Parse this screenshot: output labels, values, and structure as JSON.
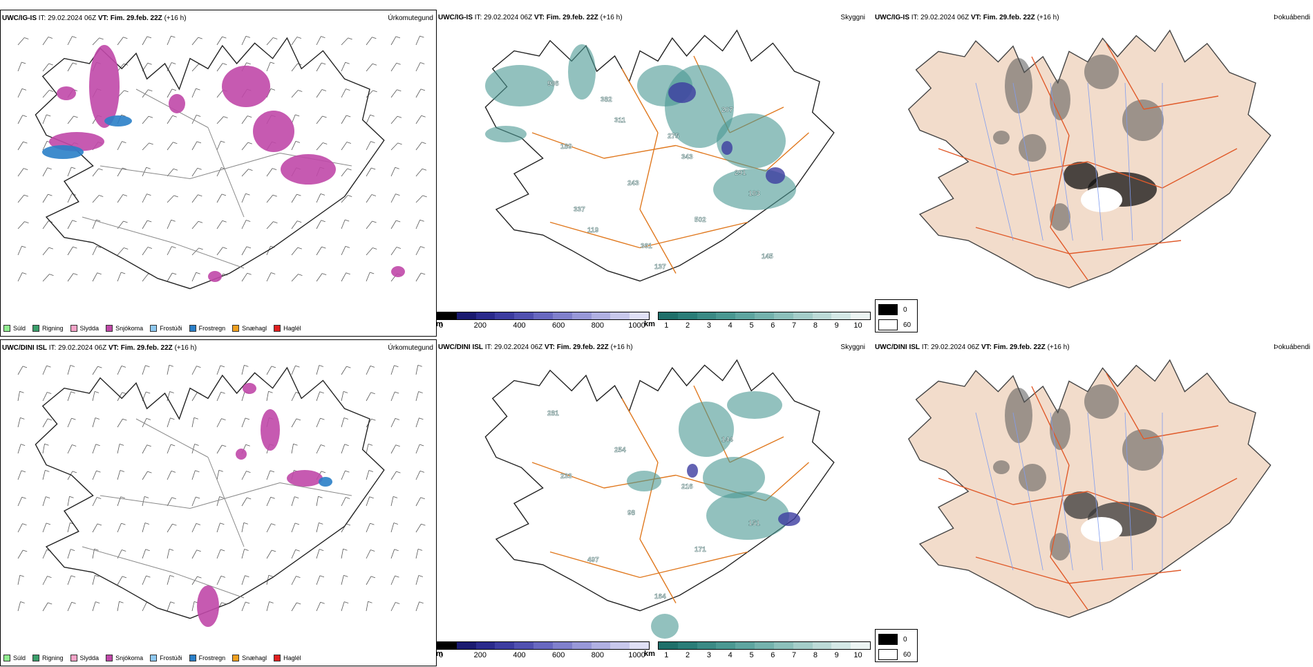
{
  "rows": [
    {
      "model": "UWC/IG-IS",
      "run_label": "IT:",
      "run": "29.02.2024 06Z",
      "valid_label": "VT:",
      "valid": "Fim. 29.feb. 22Z",
      "lead": "(+16 h)"
    },
    {
      "model": "UWC/DINI ISL",
      "run_label": "IT:",
      "run": "29.02.2024 06Z",
      "valid_label": "VT:",
      "valid": "Fim. 29.feb. 22Z",
      "lead": "(+16 h)"
    }
  ],
  "panels": {
    "precip_type": "Úrkomutegund",
    "clouds": "Skyggni",
    "fog": "Þokuábendi"
  },
  "precip_legend": [
    {
      "label": "Súld",
      "color": "#90ee90"
    },
    {
      "label": "Rigning",
      "color": "#3a9e6a"
    },
    {
      "label": "Slydda",
      "color": "#f5a3c7"
    },
    {
      "label": "Snjókoma",
      "color": "#c048a8"
    },
    {
      "label": "Frostúði",
      "color": "#8ec8f0"
    },
    {
      "label": "Frostregn",
      "color": "#2a7fc8"
    },
    {
      "label": "Snæhagl",
      "color": "#f0a020"
    },
    {
      "label": "Haglél",
      "color": "#e02020"
    }
  ],
  "cbar_m": {
    "unit": "m",
    "ticks": [
      "0",
      "200",
      "400",
      "600",
      "800",
      "1000"
    ],
    "colors": [
      "#000000",
      "#1a1a70",
      "#2a2a8c",
      "#3c3ca0",
      "#5050b0",
      "#6868c0",
      "#8080cc",
      "#9898d8",
      "#b0b0e2",
      "#c8c8ec",
      "#e0e0f5"
    ]
  },
  "cbar_km": {
    "unit": "km",
    "ticks": [
      "1",
      "2",
      "3",
      "4",
      "5",
      "6",
      "7",
      "8",
      "9",
      "10"
    ],
    "colors": [
      "#1f6f6a",
      "#2a7d78",
      "#3a8a85",
      "#4a9892",
      "#5ea5a0",
      "#74b2ad",
      "#8cc0bb",
      "#a4cdc9",
      "#bcdad7",
      "#d4e8e6",
      "#ecf4f3"
    ]
  },
  "fog_key": [
    {
      "value": "0",
      "color": "#000000"
    },
    {
      "value": "60",
      "color": "#ffffff"
    }
  ],
  "ceiling_labels": [
    [
      "986",
      "311",
      "343",
      "183",
      "119",
      "137",
      "207",
      "189",
      "243",
      "502",
      "145",
      "382",
      "275",
      "291",
      "337",
      "361"
    ],
    [
      "281",
      "254",
      "216",
      "151",
      "497",
      "164",
      "144",
      "233",
      "98",
      "171"
    ]
  ]
}
